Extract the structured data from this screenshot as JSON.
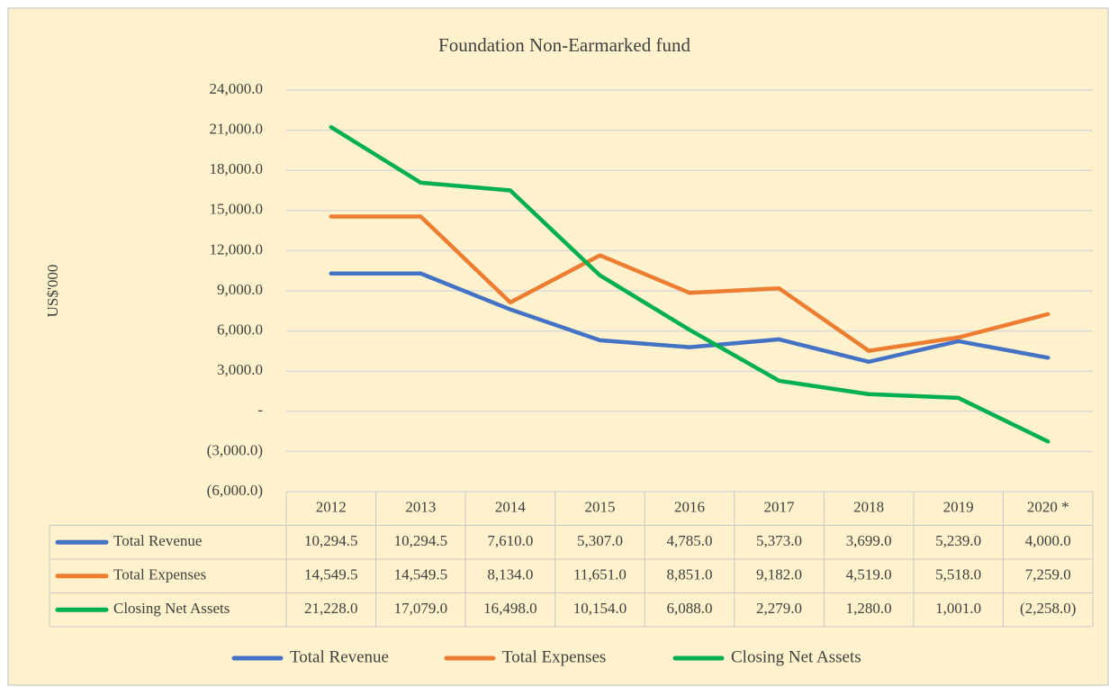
{
  "chart_data": {
    "type": "line",
    "title": "Foundation Non-Earmarked fund",
    "y_label": "US$'000",
    "categories": [
      "2012",
      "2013",
      "2014",
      "2015",
      "2016",
      "2017",
      "2018",
      "2019",
      "2020 *"
    ],
    "series": [
      {
        "name": "Total Revenue",
        "color": "#4472c4",
        "values": [
          10294.5,
          10294.5,
          7610.0,
          5307.0,
          4785.0,
          5373.0,
          3699.0,
          5239.0,
          4000.0
        ],
        "value_labels": [
          "10,294.5",
          "10,294.5",
          "7,610.0",
          "5,307.0",
          "4,785.0",
          "5,373.0",
          "3,699.0",
          "5,239.0",
          "4,000.0"
        ]
      },
      {
        "name": "Total Expenses",
        "color": "#ed7d31",
        "values": [
          14549.5,
          14549.5,
          8134.0,
          11651.0,
          8851.0,
          9182.0,
          4519.0,
          5518.0,
          7259.0
        ],
        "value_labels": [
          "14,549.5",
          "14,549.5",
          "8,134.0",
          "11,651.0",
          "8,851.0",
          "9,182.0",
          "4,519.0",
          "5,518.0",
          "7,259.0"
        ]
      },
      {
        "name": "Closing Net Assets",
        "color": "#00b050",
        "values": [
          21228.0,
          17079.0,
          16498.0,
          10154.0,
          6088.0,
          2279.0,
          1280.0,
          1001.0,
          -2258.0
        ],
        "value_labels": [
          "21,228.0",
          "17,079.0",
          "16,498.0",
          "10,154.0",
          "6,088.0",
          "2,279.0",
          "1,280.0",
          "1,001.0",
          "(2,258.0)"
        ]
      }
    ],
    "ylim": [
      -6000,
      24000
    ],
    "yticks": [
      {
        "value": -6000,
        "label": "(6,000.0)"
      },
      {
        "value": -3000,
        "label": "(3,000.0)"
      },
      {
        "value": 0,
        "label": "-"
      },
      {
        "value": 3000,
        "label": "3,000.0"
      },
      {
        "value": 6000,
        "label": "6,000.0"
      },
      {
        "value": 9000,
        "label": "9,000.0"
      },
      {
        "value": 12000,
        "label": "12,000.0"
      },
      {
        "value": 15000,
        "label": "15,000.0"
      },
      {
        "value": 18000,
        "label": "18,000.0"
      },
      {
        "value": 21000,
        "label": "21,000.0"
      },
      {
        "value": 24000,
        "label": "24,000.0"
      }
    ],
    "grid": true,
    "legend": "bottom"
  }
}
